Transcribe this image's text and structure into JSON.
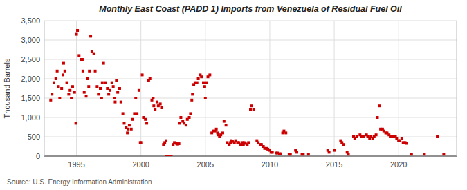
{
  "chart_data": {
    "type": "scatter",
    "title": "Monthly East Coast (PADD 1) Imports from Venezuela of Residual Fuel Oil",
    "y_label": "Thousand Barrels",
    "annotations": [
      "Source: U.S. Energy Information Administration"
    ],
    "color": "#cc0000",
    "marker": "square",
    "grid": true,
    "xlim": [
      1992.5,
      2024.5
    ],
    "xticks": [
      1995,
      2000,
      2005,
      2010,
      2015,
      2020
    ],
    "ylim": [
      0,
      3500
    ],
    "yticks": [
      0,
      500,
      {
        "value": 1000,
        "label": "1,000"
      },
      {
        "value": 1500,
        "label": "1,500"
      },
      {
        "value": 2000,
        "label": "2,000"
      },
      {
        "value": 2500,
        "label": "2,500"
      },
      {
        "value": 3000,
        "label": "3,000"
      },
      {
        "value": 3500,
        "label": "3,500"
      }
    ],
    "x": [
      1993.0,
      1993.1,
      1993.25,
      1993.4,
      1993.5,
      1993.6,
      1993.7,
      1993.85,
      1993.95,
      1994.0,
      1994.1,
      1994.25,
      1994.4,
      1994.5,
      1994.6,
      1994.7,
      1994.85,
      1994.95,
      1995.0,
      1995.08,
      1995.2,
      1995.35,
      1995.45,
      1995.5,
      1995.6,
      1995.75,
      1995.85,
      1995.95,
      1996.0,
      1996.1,
      1996.2,
      1996.35,
      1996.45,
      1996.6,
      1996.7,
      1996.85,
      1996.95,
      1997.0,
      1997.1,
      1997.25,
      1997.4,
      1997.5,
      1997.6,
      1997.75,
      1997.85,
      1997.95,
      1998.0,
      1998.1,
      1998.2,
      1998.35,
      1998.45,
      1998.6,
      1998.7,
      1998.85,
      1998.95,
      1999.0,
      1999.1,
      1999.25,
      1999.35,
      1999.5,
      1999.6,
      1999.7,
      1999.85,
      1999.95,
      2000.0,
      2000.1,
      2000.2,
      2000.35,
      2000.45,
      2000.6,
      2000.7,
      2000.85,
      2000.95,
      2001.0,
      2001.1,
      2001.25,
      2001.35,
      2001.5,
      2001.6,
      2001.75,
      2001.85,
      2001.95,
      2002.0,
      2002.1,
      2002.2,
      2002.35,
      2002.5,
      2002.6,
      2002.75,
      2002.85,
      2002.95,
      2003.0,
      2003.1,
      2003.25,
      2003.35,
      2003.5,
      2003.6,
      2003.75,
      2003.85,
      2003.95,
      2004.0,
      2004.1,
      2004.2,
      2004.35,
      2004.45,
      2004.6,
      2004.7,
      2004.85,
      2004.95,
      2005.0,
      2005.1,
      2005.2,
      2005.35,
      2005.5,
      2005.6,
      2005.75,
      2005.85,
      2005.95,
      2006.0,
      2006.1,
      2006.2,
      2006.35,
      2006.45,
      2006.6,
      2006.7,
      2006.85,
      2006.95,
      2007.0,
      2007.1,
      2007.25,
      2007.35,
      2007.5,
      2007.6,
      2007.75,
      2007.85,
      2007.95,
      2008.0,
      2008.1,
      2008.25,
      2008.35,
      2008.5,
      2008.6,
      2008.75,
      2009.0,
      2009.1,
      2009.25,
      2009.35,
      2009.5,
      2009.6,
      2009.75,
      2009.85,
      2010.0,
      2010.1,
      2010.2,
      2010.5,
      2010.6,
      2010.75,
      2010.85,
      2011.0,
      2011.1,
      2011.25,
      2011.5,
      2011.6,
      2012.0,
      2012.1,
      2012.5,
      2012.6,
      2013.0,
      2014.5,
      2014.6,
      2015.0,
      2015.5,
      2015.6,
      2015.75,
      2016.0,
      2016.1,
      2016.5,
      2016.6,
      2016.75,
      2017.0,
      2017.1,
      2017.25,
      2017.5,
      2017.6,
      2017.75,
      2017.85,
      2018.0,
      2018.1,
      2018.25,
      2018.35,
      2018.5,
      2018.6,
      2018.75,
      2018.85,
      2019.0,
      2019.1,
      2019.25,
      2019.35,
      2019.5,
      2019.6,
      2019.75,
      2019.85,
      2020.0,
      2020.1,
      2020.25,
      2020.35,
      2020.5,
      2020.6,
      2021.0,
      2022.0,
      2023.0,
      2023.5
    ],
    "values": [
      1450,
      1600,
      1900,
      2000,
      2200,
      1800,
      1500,
      1750,
      2100,
      2400,
      2200,
      1900,
      1600,
      1700,
      1500,
      1800,
      1650,
      850,
      3150,
      3250,
      2600,
      2500,
      2500,
      2200,
      1650,
      1550,
      2000,
      1800,
      2200,
      3100,
      2700,
      2650,
      2200,
      1800,
      1600,
      1750,
      1500,
      1900,
      2400,
      1900,
      1750,
      1600,
      1700,
      1900,
      1800,
      1500,
      1400,
      1950,
      1650,
      1750,
      1400,
      1100,
      850,
      750,
      600,
      700,
      800,
      700,
      950,
      1100,
      1500,
      1100,
      1700,
      350,
      350,
      2100,
      1000,
      950,
      850,
      1950,
      2000,
      1450,
      1500,
      1300,
      1200,
      1400,
      1300,
      1350,
      1250,
      300,
      350,
      400,
      0,
      0,
      0,
      0,
      300,
      350,
      330,
      310,
      320,
      850,
      1000,
      900,
      850,
      800,
      950,
      1000,
      1100,
      1450,
      1600,
      1850,
      1900,
      1900,
      2000,
      2100,
      2050,
      1900,
      1800,
      1500,
      1900,
      2050,
      2100,
      600,
      650,
      650,
      700,
      600,
      550,
      500,
      550,
      600,
      900,
      800,
      350,
      300,
      350,
      400,
      380,
      350,
      400,
      350,
      350,
      300,
      350,
      300,
      350,
      330,
      300,
      350,
      1200,
      1300,
      1200,
      400,
      350,
      300,
      300,
      250,
      200,
      200,
      180,
      150,
      100,
      100,
      80,
      80,
      60,
      60,
      600,
      650,
      600,
      50,
      50,
      150,
      100,
      50,
      50,
      50,
      150,
      100,
      150,
      400,
      350,
      300,
      100,
      50,
      500,
      450,
      500,
      550,
      500,
      500,
      550,
      500,
      450,
      500,
      450,
      500,
      550,
      1000,
      1300,
      700,
      700,
      650,
      600,
      600,
      550,
      500,
      500,
      500,
      500,
      450,
      400,
      400,
      450,
      350,
      350,
      330,
      50,
      50,
      500,
      50
    ]
  }
}
